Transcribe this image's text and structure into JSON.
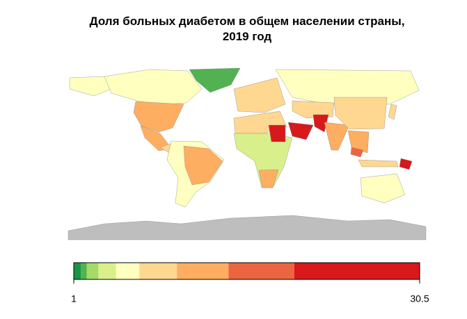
{
  "title": "Доля больных диабетом в общем населении страны, 2019 год",
  "legend": {
    "breaks": [
      1,
      1.6,
      2.1,
      3.1,
      4.6,
      6.6,
      9.8,
      14.2,
      19.8,
      30.5
    ],
    "colors": [
      "#1a9641",
      "#52b151",
      "#a6d96a",
      "#d9ef8b",
      "#ffffbf",
      "#fed790",
      "#fdae61",
      "#eb6640",
      "#d7191c"
    ],
    "ticks": [
      1,
      30.5
    ]
  }
}
